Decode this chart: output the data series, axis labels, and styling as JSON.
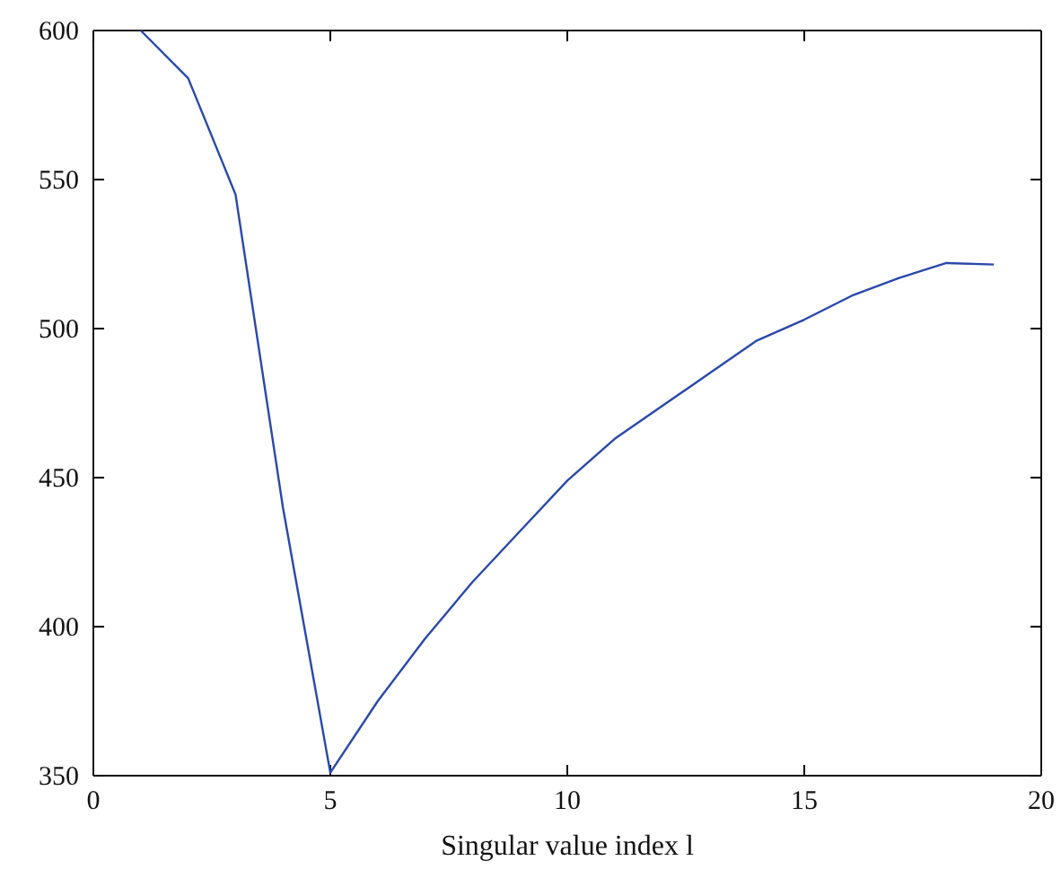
{
  "chart_data": {
    "type": "line",
    "xlabel": "Singular value index l",
    "x": [
      1,
      2,
      3,
      4,
      5,
      6,
      7,
      8,
      9,
      10,
      11,
      12,
      13,
      14,
      15,
      16,
      17,
      18,
      19
    ],
    "series": [
      {
        "color": "#2a48a8",
        "values": [
          600,
          584,
          545,
          440,
          351,
          375,
          396,
          415,
          432,
          449,
          463,
          474,
          485,
          496,
          503,
          511,
          517,
          522,
          521.5
        ]
      }
    ],
    "xlim": [
      0,
      20
    ],
    "xticks": [
      0,
      5,
      10,
      15,
      20
    ],
    "ylim": [
      350,
      600
    ],
    "yticks": [
      350,
      400,
      450,
      500,
      550,
      600
    ],
    "grid": false,
    "marker": "none",
    "line_style": "solid"
  }
}
